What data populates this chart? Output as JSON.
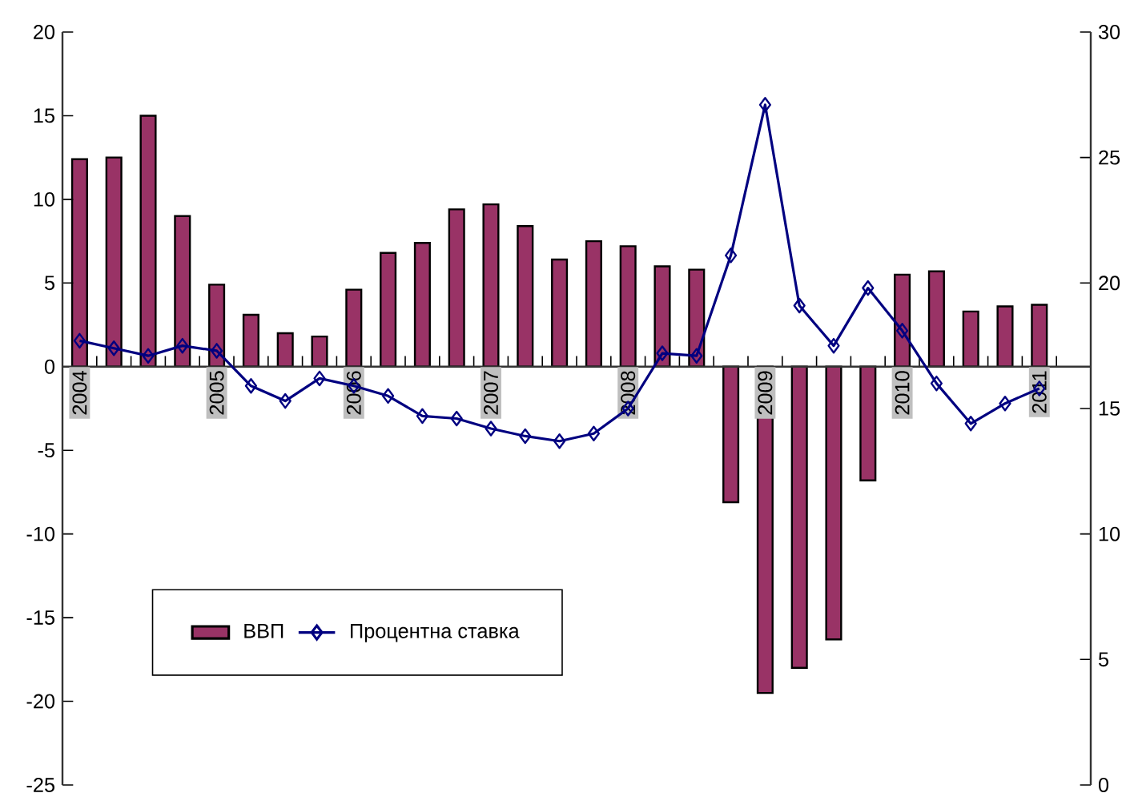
{
  "chart_data": {
    "type": "bar",
    "categories": [
      "2004",
      null,
      null,
      null,
      "2005",
      null,
      null,
      null,
      "2006",
      null,
      null,
      null,
      "2007",
      null,
      null,
      null,
      "2008",
      null,
      null,
      null,
      "2009",
      null,
      null,
      null,
      "2010",
      null,
      null,
      null,
      "2011"
    ],
    "series": [
      {
        "name": "ВВП",
        "color": "#993366",
        "values": [
          12.4,
          12.5,
          15.0,
          9.0,
          4.9,
          3.1,
          2.0,
          1.8,
          4.6,
          6.8,
          7.4,
          9.4,
          9.7,
          8.4,
          6.4,
          7.5,
          7.2,
          6.0,
          5.8,
          -8.1,
          -19.5,
          -18.0,
          -16.3,
          -6.8,
          5.5,
          5.7,
          3.3,
          3.6,
          3.7
        ]
      },
      {
        "name": "Процентна ставка",
        "type": "line",
        "axis": "y2",
        "color": "#000080",
        "values": [
          17.7,
          17.4,
          17.1,
          17.5,
          17.3,
          15.9,
          15.3,
          16.2,
          15.9,
          15.5,
          14.7,
          14.6,
          14.2,
          13.9,
          13.7,
          14.0,
          15.0,
          17.2,
          17.1,
          21.1,
          27.1,
          19.1,
          17.5,
          19.8,
          18.1,
          16.0,
          14.4,
          15.2,
          15.8
        ]
      }
    ],
    "ylim": [
      -25,
      20
    ],
    "yticks": [
      -25,
      -20,
      -15,
      -10,
      -5,
      0,
      5,
      10,
      15,
      20
    ],
    "y2lim": [
      0,
      30
    ],
    "y2ticks": [
      0,
      5,
      10,
      15,
      20,
      25,
      30
    ],
    "marker": "diamond",
    "legend": "bottom left"
  }
}
